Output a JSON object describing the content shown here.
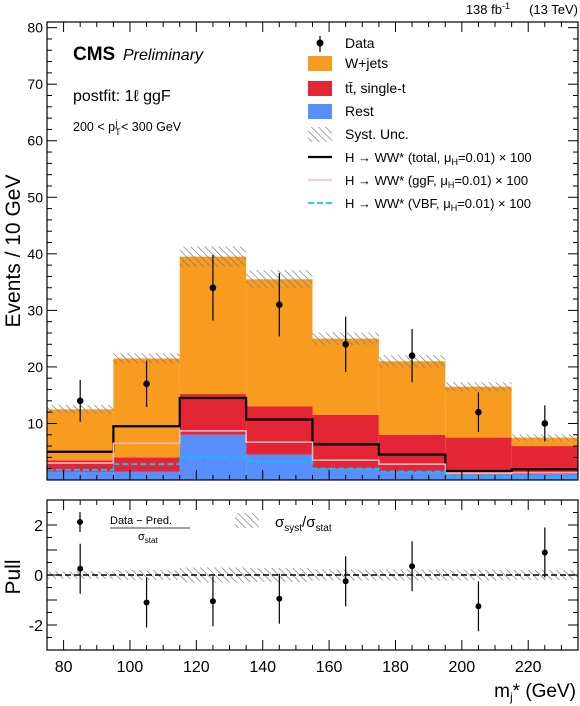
{
  "chart_data": {
    "type": "bar",
    "header": {
      "lumi": "138 fb",
      "lumi_exp": "-1",
      "energy": "(13 TeV)",
      "experiment": "CMS",
      "tag": "Preliminary",
      "region": "postfit: 1ℓ ggF",
      "cut_prefix": "200 < p",
      "cut_sub": "T",
      "cut_sup": "j",
      "cut_suffix": " < 300 GeV"
    },
    "x": {
      "label_main": "m",
      "label_sub": "j",
      "label_tail": "* (GeV)",
      "range": [
        75,
        235
      ],
      "ticks": [
        80,
        100,
        120,
        140,
        160,
        180,
        200,
        220
      ],
      "bin_edges": [
        75,
        95,
        115,
        135,
        155,
        175,
        195,
        215,
        235
      ],
      "bin_centers": [
        85,
        105,
        125,
        145,
        165,
        185,
        205,
        225
      ]
    },
    "main_panel": {
      "ylabel": "Events / 10 GeV",
      "ylim": [
        0,
        81
      ],
      "yticks": [
        10,
        20,
        30,
        40,
        50,
        60,
        70,
        80
      ],
      "stack": [
        {
          "name": "Rest",
          "color": "#5790fc",
          "values": [
            1.5,
            1.5,
            8.0,
            4.5,
            2.0,
            1.5,
            1.0,
            1.0
          ]
        },
        {
          "name": "tt̄, single-t",
          "color": "#e42536",
          "values": [
            2.0,
            2.5,
            7.2,
            8.5,
            9.5,
            6.5,
            6.5,
            5.0
          ]
        },
        {
          "name": "W+jets",
          "color": "#f89c20",
          "values": [
            9.0,
            17.5,
            24.3,
            22.5,
            13.5,
            13.0,
            9.0,
            1.5
          ]
        }
      ],
      "syst_band": {
        "name": "Syst. Unc.",
        "half_width": [
          0.8,
          0.9,
          1.8,
          1.6,
          1.1,
          1.1,
          0.8,
          0.6
        ]
      },
      "data": {
        "name": "Data",
        "values": [
          14,
          17,
          34,
          31,
          24,
          22,
          12,
          10
        ],
        "err": [
          3.7,
          4.1,
          5.8,
          5.6,
          4.9,
          4.7,
          3.5,
          3.2
        ]
      },
      "signals": [
        {
          "name": "H → WW* (total, μ",
          "mu_sub": "H",
          "mu_tail": "=0.01) × 100",
          "color": "#000000",
          "style": "solid",
          "values": [
            5.0,
            9.5,
            14.5,
            10.7,
            6.3,
            4.5,
            1.6,
            1.9
          ]
        },
        {
          "name": "H → WW* (ggF, μ",
          "mu_sub": "H",
          "mu_tail": "=0.01) × 100",
          "color": "#f4b6c2",
          "style": "solid",
          "values": [
            3.0,
            6.5,
            8.7,
            6.7,
            3.5,
            2.8,
            1.2,
            1.3
          ]
        },
        {
          "name": "H → WW* (VBF, μ",
          "mu_sub": "H",
          "mu_tail": "=0.01) × 100",
          "color": "#00c8ff",
          "style": "dashed",
          "values": [
            1.8,
            2.8,
            4.0,
            3.3,
            2.0,
            1.5,
            0.6,
            0.4
          ]
        }
      ]
    },
    "pull_panel": {
      "ylabel": "Pull",
      "ylim": [
        -3,
        3
      ],
      "yticks": [
        -2,
        0,
        2
      ],
      "values": [
        0.25,
        -1.1,
        -1.05,
        -0.95,
        -0.25,
        0.35,
        -1.25,
        0.9
      ],
      "err": [
        1.0,
        1.0,
        1.0,
        1.0,
        1.0,
        1.0,
        1.0,
        1.0
      ],
      "band_half": [
        0.15,
        0.2,
        0.3,
        0.28,
        0.22,
        0.22,
        0.22,
        0.2
      ],
      "legend_data_num": "Data − Pred.",
      "legend_data_den": "σ",
      "legend_data_den_sub": "stat",
      "legend_band_a": "σ",
      "legend_band_a_sub": "syst",
      "legend_band_b": "/σ",
      "legend_band_b_sub": "stat"
    }
  }
}
